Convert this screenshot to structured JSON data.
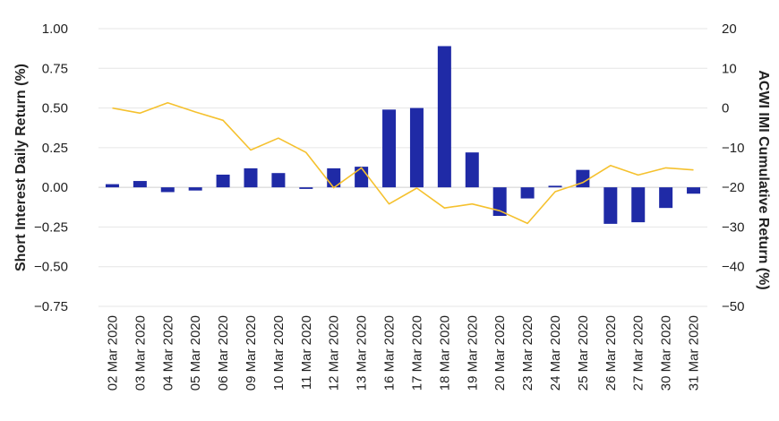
{
  "chart_data": {
    "type": "bar",
    "categories": [
      "02 Mar 2020",
      "03 Mar 2020",
      "04 Mar 2020",
      "05 Mar 2020",
      "06 Mar 2020",
      "09 Mar 2020",
      "10 Mar 2020",
      "11 Mar 2020",
      "12 Mar 2020",
      "13 Mar 2020",
      "16 Mar 2020",
      "17 Mar 2020",
      "18 Mar 2020",
      "19 Mar 2020",
      "20 Mar 2020",
      "23 Mar 2020",
      "24 Mar 2020",
      "25 Mar 2020",
      "26 Mar 2020",
      "27 Mar 2020",
      "30 Mar 2020",
      "31 Mar 2020"
    ],
    "series": [
      {
        "type": "bar",
        "axis": "left",
        "color": "#1f2aa6",
        "values": [
          0.02,
          0.04,
          -0.03,
          -0.02,
          0.08,
          0.12,
          0.09,
          -0.01,
          0.12,
          0.13,
          0.49,
          0.5,
          0.89,
          0.22,
          -0.18,
          -0.07,
          0.01,
          0.11,
          -0.23,
          -0.22,
          -0.13,
          -0.04
        ]
      },
      {
        "type": "line",
        "axis": "right",
        "color": "#f5c12e",
        "values": [
          0.0,
          -1.3,
          1.3,
          -1.0,
          -3.1,
          -10.6,
          -7.6,
          -11.2,
          -20.1,
          -15.1,
          -24.2,
          -20.2,
          -25.2,
          -24.2,
          -25.9,
          -29.1,
          -21.1,
          -18.8,
          -14.5,
          -16.9,
          -15.1,
          -15.6
        ]
      }
    ],
    "ylabel": "Short Interest Daily Return (%)",
    "y2label": "ACWI IMI Cumulative Return (%)",
    "ylim": [
      -0.75,
      1.0
    ],
    "y2lim": [
      -50,
      20
    ],
    "yticks": [
      "1.00",
      "0.75",
      "0.50",
      "0.25",
      "0.00",
      "−0.25",
      "−0.50",
      "−0.75"
    ],
    "y2ticks": [
      "20",
      "10",
      "0",
      "−10",
      "−20",
      "−30",
      "−40",
      "−50"
    ],
    "grid": true
  }
}
